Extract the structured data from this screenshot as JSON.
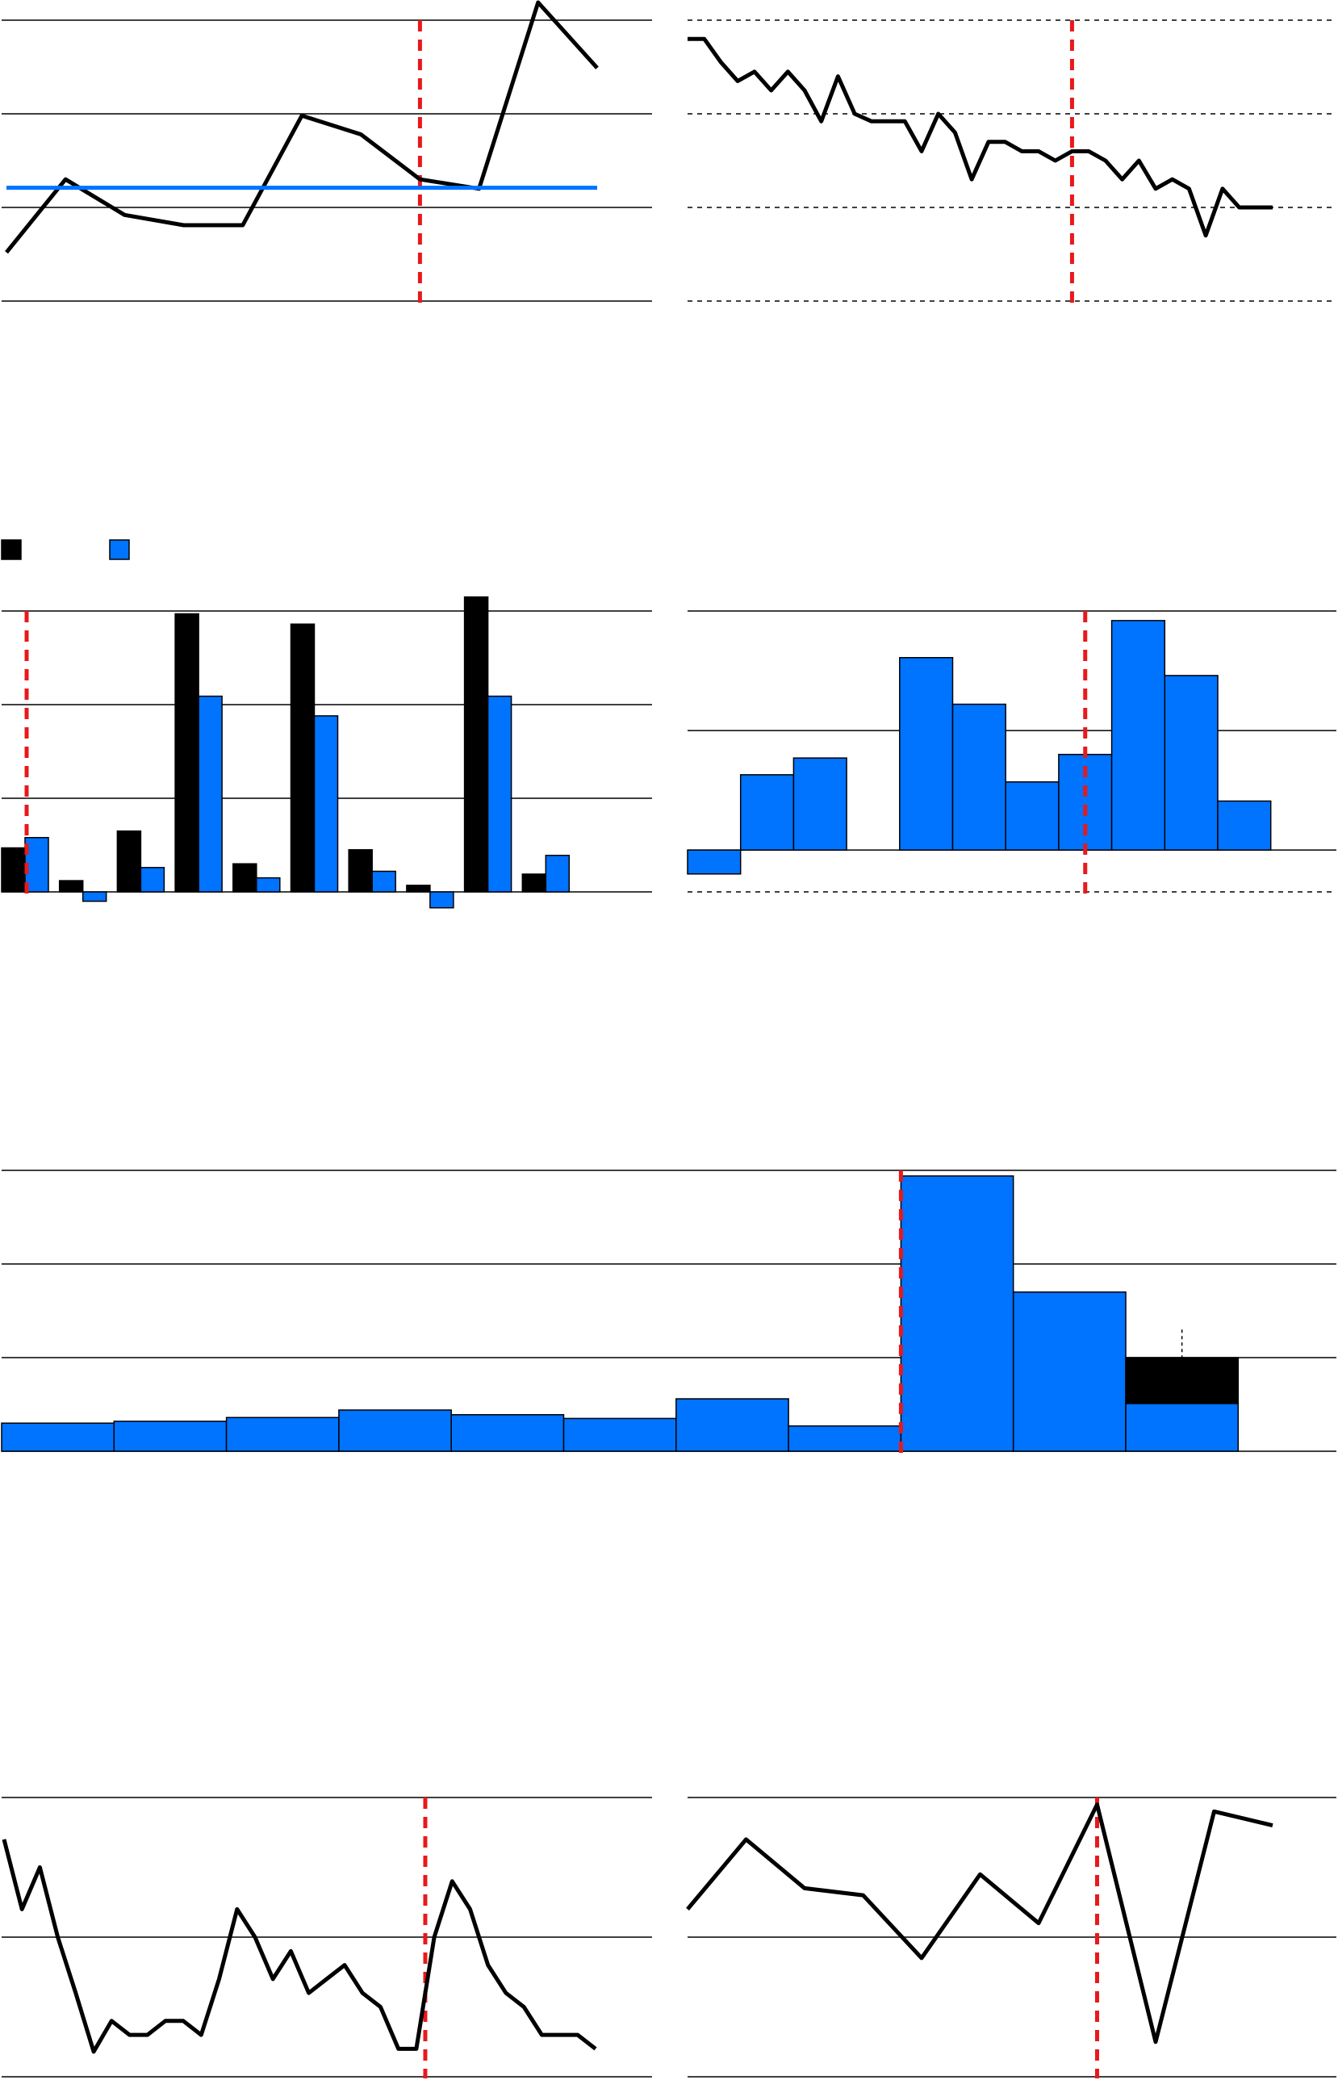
{
  "colors": {
    "black": "#000000",
    "blue": "#0073ff",
    "marker": "#e8191b",
    "grid": "#000000"
  },
  "chart_data": [
    {
      "id": "p1",
      "type": "line",
      "x": [
        1,
        2,
        3,
        4,
        5,
        6,
        7,
        8,
        9,
        10,
        11
      ],
      "ylim": [
        0,
        3
      ],
      "gridlines": [
        0,
        1,
        2,
        3
      ],
      "grid_style": "solid",
      "series": [
        {
          "color": "black",
          "values": [
            0.52,
            1.3,
            0.92,
            0.81,
            0.81,
            1.98,
            1.78,
            1.3,
            1.2,
            3.19,
            2.49
          ]
        },
        {
          "color": "blue",
          "values": [
            1.21,
            1.21,
            1.21,
            1.21,
            1.21,
            1.21,
            1.21,
            1.21,
            1.21,
            1.21,
            1.21
          ]
        }
      ],
      "marker_x": 8
    },
    {
      "id": "p2",
      "type": "line",
      "x": [
        1,
        2,
        3,
        4,
        5,
        6,
        7,
        8,
        9,
        10,
        11,
        12,
        13,
        14,
        15,
        16,
        17,
        18,
        19,
        20,
        21,
        22,
        23,
        24,
        25,
        26,
        27,
        28,
        29,
        30,
        31,
        32,
        33,
        34,
        35,
        36
      ],
      "ylim": [
        0,
        3
      ],
      "gridlines": [
        0,
        1,
        2,
        3
      ],
      "grid_style": "dashed",
      "series": [
        {
          "color": "black",
          "values": [
            2.8,
            2.8,
            2.55,
            2.35,
            2.45,
            2.25,
            2.45,
            2.25,
            1.92,
            2.4,
            2.0,
            1.92,
            1.92,
            1.92,
            1.6,
            2.0,
            1.8,
            1.3,
            1.7,
            1.7,
            1.6,
            1.6,
            1.5,
            1.6,
            1.6,
            1.5,
            1.3,
            1.5,
            1.2,
            1.3,
            1.2,
            0.7,
            1.2,
            1.0,
            1.0,
            1.0
          ]
        }
      ],
      "marker_x": 24
    },
    {
      "id": "p3",
      "type": "bar",
      "legend_position": "top-left",
      "legend": [
        {
          "color": "black"
        },
        {
          "color": "blue"
        }
      ],
      "ylim": [
        0,
        3
      ],
      "gridlines": [
        0,
        1,
        2,
        3
      ],
      "categories": [
        "1",
        "2",
        "3",
        "4",
        "5",
        "6",
        "7",
        "8",
        "9",
        "10"
      ],
      "series": [
        {
          "color": "black",
          "values": [
            0.47,
            0.12,
            0.65,
            2.97,
            0.3,
            2.86,
            0.45,
            0.07,
            3.15,
            0.19
          ]
        },
        {
          "color": "blue",
          "values": [
            0.58,
            -0.1,
            0.26,
            2.09,
            0.15,
            1.88,
            0.22,
            -0.17,
            2.09,
            0.39
          ]
        }
      ],
      "marker_x": 1
    },
    {
      "id": "p4",
      "type": "bar",
      "ylim": [
        -0.35,
        2.0
      ],
      "gridlines": [
        0,
        1,
        2
      ],
      "dashed_baseline": -0.35,
      "categories": [
        "1",
        "2",
        "3",
        "4",
        "5",
        "6",
        "7",
        "8",
        "9",
        "10",
        "11"
      ],
      "series": [
        {
          "color": "blue",
          "values": [
            -0.2,
            0.63,
            0.77,
            0,
            1.61,
            1.22,
            0.57,
            0.8,
            1.92,
            1.46,
            0.41
          ]
        }
      ],
      "marker_x": 8.5
    },
    {
      "id": "p5",
      "type": "bar",
      "ylim": [
        0,
        3
      ],
      "gridlines": [
        0,
        1,
        2,
        3
      ],
      "categories": [
        "1",
        "2",
        "3",
        "4",
        "5",
        "6",
        "7",
        "8",
        "9",
        "10",
        "11"
      ],
      "series": [
        {
          "color": "blue",
          "values": [
            0.3,
            0.32,
            0.36,
            0.44,
            0.39,
            0.35,
            0.56,
            0.27,
            2.94,
            1.7,
            0.51
          ]
        },
        {
          "color": "black",
          "stack_on_blue": true,
          "values": [
            0,
            0,
            0,
            0,
            0,
            0,
            0,
            0,
            0,
            0,
            0.49
          ]
        }
      ],
      "error_mark_x": 11,
      "error_mark_range": [
        1.0,
        1.3
      ],
      "marker_x": 9
    },
    {
      "id": "p6",
      "type": "line",
      "x": [
        1,
        2,
        3,
        4,
        5,
        6,
        7,
        8,
        9,
        10,
        11,
        12,
        13,
        14,
        15,
        16,
        17,
        18,
        19,
        20,
        21,
        22,
        23,
        24,
        25,
        26,
        27,
        28,
        29,
        30,
        31,
        32,
        33,
        34
      ],
      "ylim": [
        0,
        2
      ],
      "gridlines": [
        0,
        1,
        2
      ],
      "grid_style": "solid",
      "series": [
        {
          "color": "black",
          "values": [
            1.7,
            1.2,
            1.5,
            1.0,
            0.6,
            0.18,
            0.4,
            0.3,
            0.3,
            0.4,
            0.4,
            0.3,
            0.7,
            1.2,
            1.0,
            0.7,
            0.9,
            0.6,
            0.7,
            0.8,
            0.6,
            0.5,
            0.2,
            0.2,
            1.0,
            1.4,
            1.2,
            0.8,
            0.6,
            0.5,
            0.3,
            0.3,
            0.3,
            0.2
          ]
        }
      ],
      "marker_x": 24.5
    },
    {
      "id": "p7",
      "type": "line",
      "x": [
        1,
        2,
        3,
        4,
        5,
        6,
        7,
        8,
        9,
        10,
        11
      ],
      "ylim": [
        0,
        2
      ],
      "gridlines": [
        0,
        1,
        2
      ],
      "grid_style": "solid",
      "series": [
        {
          "color": "black",
          "values": [
            1.2,
            1.7,
            1.35,
            1.3,
            0.85,
            1.45,
            1.1,
            1.95,
            0.25,
            1.9,
            1.8
          ]
        }
      ],
      "marker_x": 8
    }
  ]
}
